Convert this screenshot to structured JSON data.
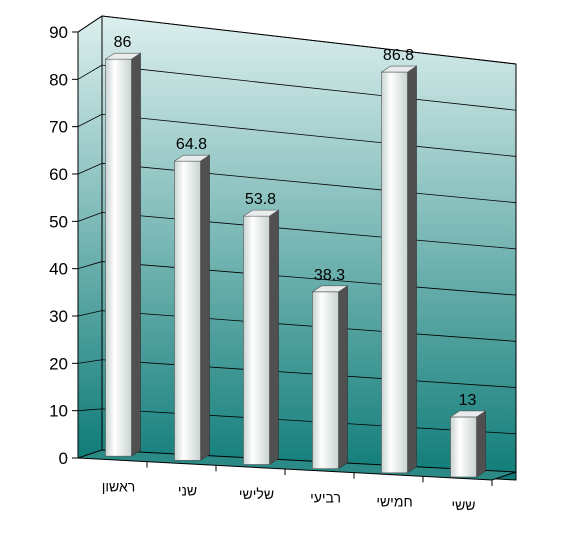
{
  "chart_data": {
    "type": "bar",
    "style": "3d-cylinder",
    "categories": [
      "ראשון",
      "שני",
      "שלישי",
      "רביעי",
      "חמישי",
      "ששי"
    ],
    "values": [
      86,
      64.8,
      53.8,
      38.3,
      86.8,
      13
    ],
    "data_labels": [
      "86",
      "64.8",
      "53.8",
      "38.3",
      "86.8",
      "13"
    ],
    "y_ticks": [
      "0",
      "10",
      "20",
      "30",
      "40",
      "50",
      "60",
      "70",
      "80",
      "90"
    ],
    "ylim": [
      0,
      90
    ],
    "grid": true,
    "legend": "none",
    "colors": {
      "wall_top": "#dcefee",
      "wall_bottom": "#0f7c78",
      "floor": "#2c8a86",
      "bar_light": "#ffffff",
      "bar_mid": "#c8d3d1",
      "bar_side": "#505050",
      "bar_top": "#e8ecec"
    }
  }
}
